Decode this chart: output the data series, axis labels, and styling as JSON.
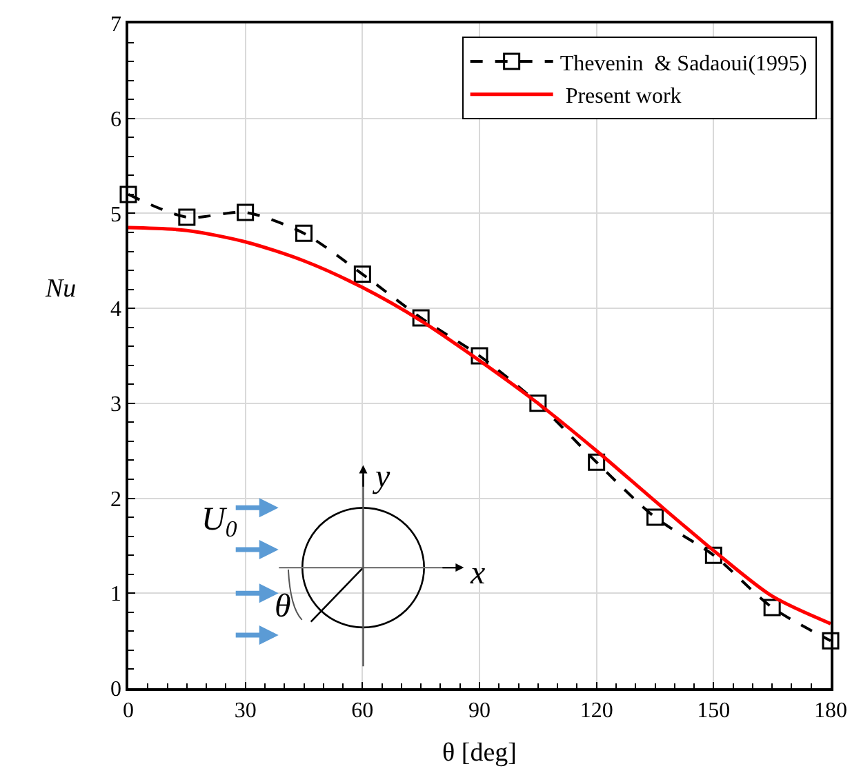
{
  "chart_data": {
    "type": "line",
    "xlabel": "θ [deg]",
    "ylabel": "Nu",
    "x": [
      0,
      15,
      30,
      45,
      60,
      75,
      90,
      105,
      120,
      135,
      150,
      165,
      180
    ],
    "series": [
      {
        "name": "Thevenin  & Sadaoui(1995)",
        "color": "#000000",
        "marker": "square",
        "line_style": "dashed",
        "values": [
          5.2,
          4.96,
          5.01,
          4.79,
          4.36,
          3.9,
          3.5,
          3.0,
          2.38,
          1.8,
          1.4,
          0.85,
          0.5
        ]
      },
      {
        "name": " Present work",
        "color": "#ff0000",
        "marker": "none",
        "line_style": "solid",
        "values": [
          4.85,
          4.82,
          4.7,
          4.5,
          4.22,
          3.87,
          3.45,
          3.0,
          2.5,
          1.97,
          1.45,
          0.97,
          0.68
        ]
      }
    ],
    "xlim": [
      0,
      180
    ],
    "xticks": [
      0,
      30,
      60,
      90,
      120,
      150,
      180
    ],
    "ylim": [
      0,
      7
    ],
    "yticks": [
      0,
      1,
      2,
      3,
      4,
      5,
      6,
      7
    ],
    "grid": true,
    "legend": "top right",
    "annotations": [
      "U$_{0}$",
      "y",
      "x",
      "θ"
    ]
  }
}
